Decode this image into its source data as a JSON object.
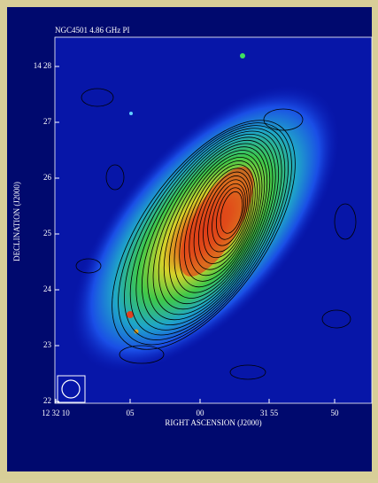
{
  "figure": {
    "title": "NGC4501 4.86 GHz PI",
    "x_axis": {
      "label": "RIGHT ASCENSION (J2000)",
      "ticks": [
        "12 32 10",
        "05",
        "00",
        "31 55",
        "50"
      ]
    },
    "y_axis": {
      "label": "DECLINATION (J2000)",
      "ticks": [
        "14 28",
        "27",
        "26",
        "25",
        "24",
        "23",
        "22"
      ]
    }
  }
}
